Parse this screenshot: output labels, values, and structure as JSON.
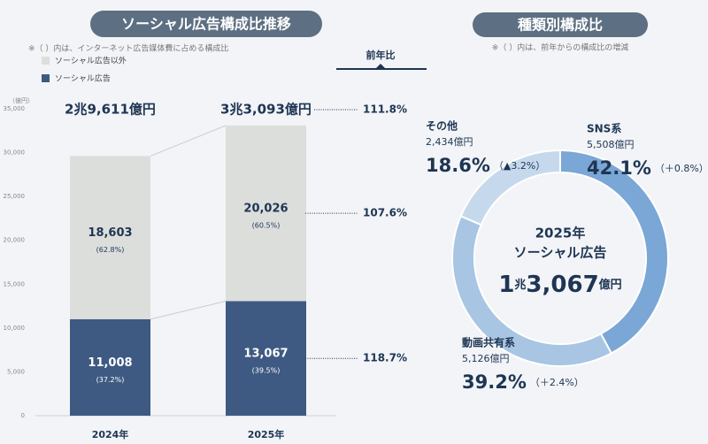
{
  "chart_data": [
    {
      "type": "bar",
      "stacked": true,
      "title": "ソーシャル広告構成比推移",
      "note": "※（ ）内は、インターネット広告媒体費に占める構成比",
      "y_unit": "（億円）",
      "categories": [
        "2024年",
        "2025年"
      ],
      "series": [
        {
          "name": "ソーシャル広告",
          "color": "#3e5a82",
          "values": [
            11008,
            13067
          ],
          "value_labels": [
            "11,008",
            "13,067"
          ],
          "share_labels": [
            "(37.2%)",
            "(39.5%)"
          ]
        },
        {
          "name": "ソーシャル広告以外",
          "color": "#dcdedc",
          "values": [
            18603,
            20026
          ],
          "value_labels": [
            "18,603",
            "20,026"
          ],
          "share_labels": [
            "(62.8%)",
            "(60.5%)"
          ]
        }
      ],
      "total_labels": [
        "2兆9,611億円",
        "3兆3,093億円"
      ],
      "growth_title": "前年比",
      "growth_labels": [
        "111.8%",
        "107.6%",
        "118.7%"
      ],
      "ylim": [
        0,
        35000
      ],
      "yticks": [
        0,
        {
          "value": 5000,
          "label": "5,000"
        },
        {
          "value": 10000,
          "label": "10,000"
        },
        {
          "value": 15000,
          "label": "15,000"
        },
        {
          "value": 20000,
          "label": "20,000"
        },
        {
          "value": 25000,
          "label": "25,000"
        },
        {
          "value": 30000,
          "label": "30,000"
        },
        {
          "value": 35000,
          "label": "35,000"
        }
      ],
      "grid": false
    },
    {
      "type": "pie",
      "donut": true,
      "title": "種類別構成比",
      "note": "※（ ）内は、前年からの構成比の増減",
      "center_lines": [
        "2025年",
        "ソーシャル広告"
      ],
      "center_total": [
        "1",
        "兆",
        "3,067",
        "億円"
      ],
      "categories": [
        "SNS系",
        "動画共有系",
        "その他"
      ],
      "values": [
        42.1,
        39.2,
        18.6
      ],
      "value_labels": [
        "42.1%",
        "39.2%",
        "18.6%"
      ],
      "colors": [
        "#7aa7d5",
        "#a8c5e3",
        "#c6d9ec"
      ],
      "amounts": [
        "5,508億円",
        "5,126億円",
        "2,434億円"
      ],
      "changes": [
        "（＋0.8%）",
        "（＋2.4%）",
        "（▲3.2%）"
      ]
    }
  ]
}
